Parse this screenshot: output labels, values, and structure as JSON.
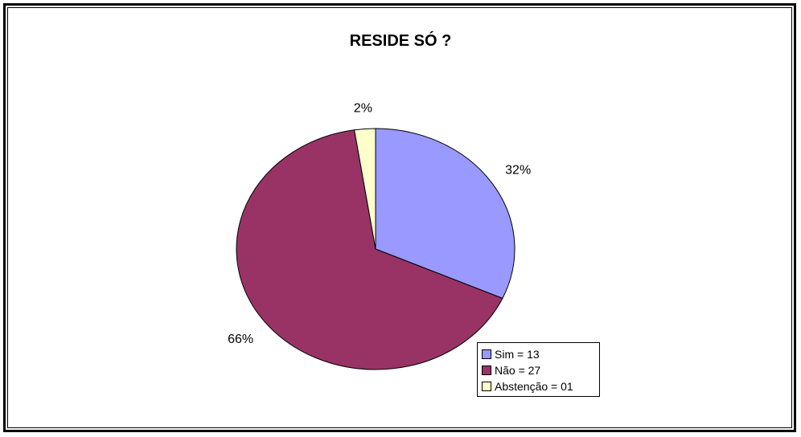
{
  "chart_data": {
    "type": "pie",
    "title": "RESIDE SÓ ?",
    "slices": [
      {
        "label": "Sim = 13",
        "value": 13,
        "percent_label": "32%",
        "color": "#9999FF"
      },
      {
        "label": "Não = 27",
        "value": 27,
        "percent_label": "66%",
        "color": "#993366"
      },
      {
        "label": "Abstenção = 01",
        "value": 1,
        "percent_label": "2%",
        "color": "#FFFFCC"
      }
    ],
    "legend_position": "bottom-right"
  }
}
